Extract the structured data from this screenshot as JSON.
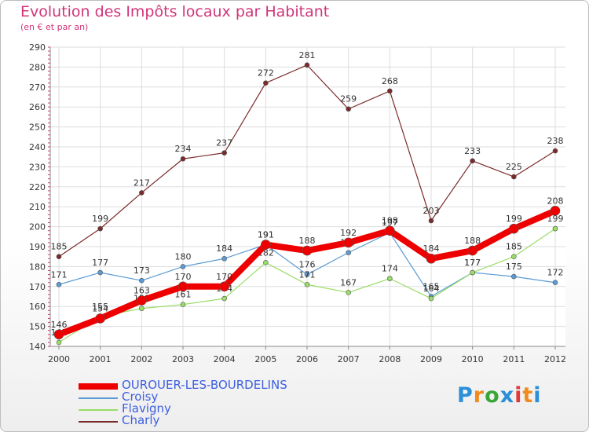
{
  "chart_data": {
    "type": "line",
    "title": "Evolution des Impôts locaux par Habitant",
    "subtitle": "(en € et par an)",
    "x": [
      "2000",
      "2001",
      "2002",
      "2003",
      "2004",
      "2005",
      "2006",
      "2007",
      "2008",
      "2009",
      "2010",
      "2011",
      "2012"
    ],
    "ylim": [
      140,
      290
    ],
    "yticks": [
      140,
      150,
      160,
      170,
      180,
      190,
      200,
      210,
      220,
      230,
      240,
      250,
      260,
      270,
      280,
      290
    ],
    "grid": true,
    "legend_position": "bottom-left",
    "series": [
      {
        "name": "Charly",
        "color": "#7a2a2a",
        "values": [
          185,
          199,
          217,
          234,
          237,
          272,
          281,
          259,
          268,
          203,
          233,
          225,
          238
        ]
      },
      {
        "name": "Croisy",
        "color": "#5b9bd5",
        "values": [
          171,
          177,
          173,
          180,
          184,
          191,
          176,
          187,
          197,
          165,
          177,
          175,
          172
        ]
      },
      {
        "name": "Flavigny",
        "color": "#99dd66",
        "values": [
          142,
          155,
          159,
          161,
          164,
          182,
          171,
          167,
          174,
          164,
          177,
          185,
          199
        ]
      },
      {
        "name": "OUROUER-LES-BOURDELINS",
        "color": "#ee0000",
        "values": [
          146,
          154,
          163,
          170,
          170,
          191,
          188,
          192,
          198,
          184,
          188,
          199,
          208
        ]
      }
    ]
  },
  "logo": {
    "letters": [
      "P",
      "r",
      "o",
      "x",
      "i",
      "t",
      "i"
    ],
    "colors": [
      "#2a8fd8",
      "#f08a1c",
      "#3aa63a",
      "#2a8fd8",
      "#e23a3a",
      "#f08a1c",
      "#2a8fd8"
    ]
  }
}
